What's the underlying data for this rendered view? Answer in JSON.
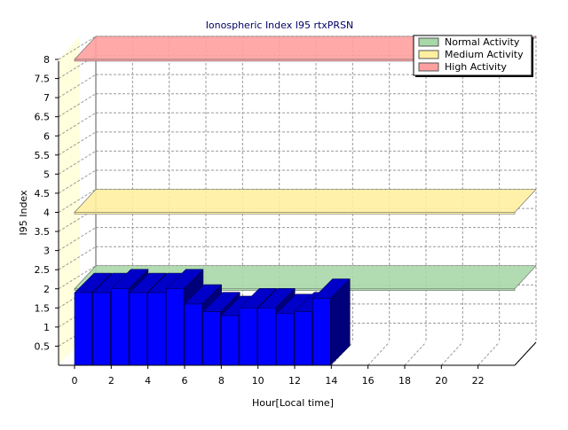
{
  "chart_data": {
    "type": "bar",
    "title": "Ionospheric Index I95 rtxPRSN",
    "xlabel": "Hour[Local time]",
    "ylabel": "I95 Index",
    "ylim": [
      0,
      8
    ],
    "xlim": [
      0,
      24
    ],
    "x_ticks": [
      "0",
      "2",
      "4",
      "6",
      "8",
      "10",
      "12",
      "14",
      "16",
      "18",
      "20",
      "22"
    ],
    "y_ticks": [
      "0.5",
      "1",
      "1.5",
      "2",
      "2.5",
      "3",
      "3.5",
      "4",
      "4.5",
      "5",
      "5.5",
      "6",
      "6.5",
      "7",
      "7.5",
      "8"
    ],
    "grid": true,
    "legend_position": "top-right",
    "bands": [
      {
        "name": "Normal Activity",
        "value": 2,
        "color": "#a8d8a8"
      },
      {
        "name": "Medium Activity",
        "value": 4,
        "color": "#fff0a0"
      },
      {
        "name": "High Activity",
        "value": 8,
        "color": "#ffa0a0"
      }
    ],
    "series": [
      {
        "color": "#0000ff",
        "hours": [
          0,
          1,
          2,
          3,
          4,
          5,
          6,
          7,
          8,
          9,
          10,
          11,
          12,
          13
        ],
        "values": [
          1.9,
          1.9,
          2.0,
          1.9,
          1.9,
          2.0,
          1.6,
          1.4,
          1.3,
          1.5,
          1.5,
          1.35,
          1.4,
          1.75
        ]
      }
    ]
  }
}
